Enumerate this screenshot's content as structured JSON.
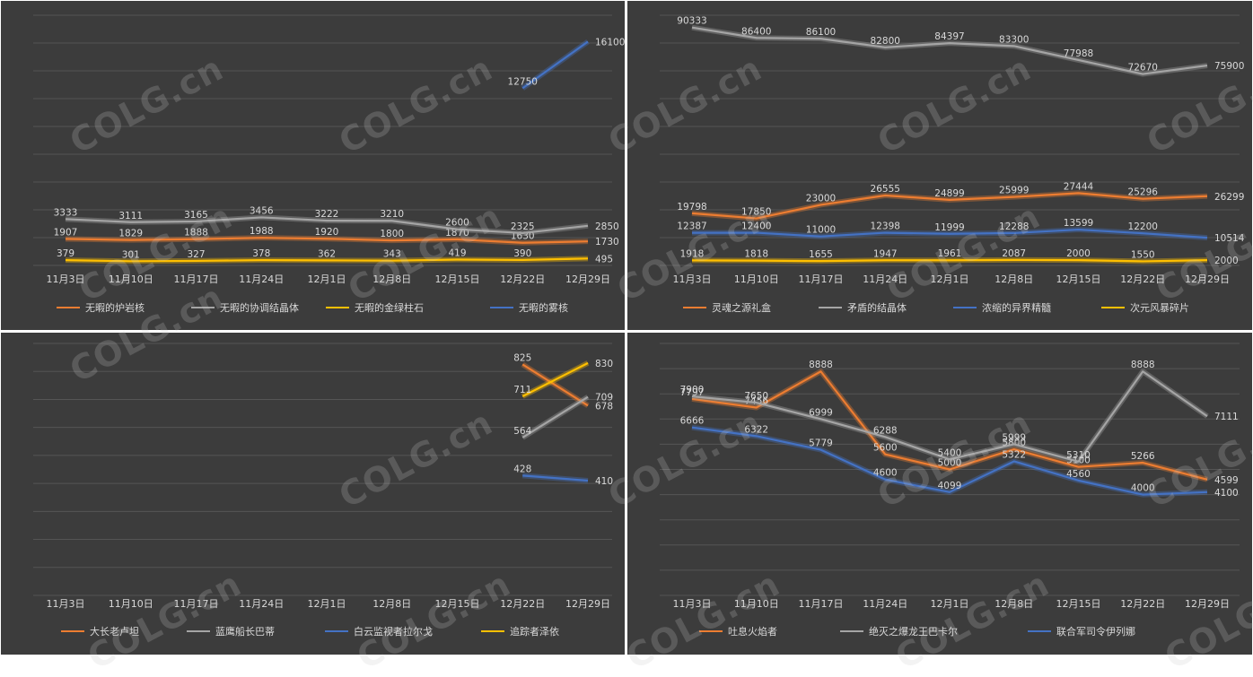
{
  "watermark": "COLG.cn",
  "chart_data": [
    {
      "type": "line",
      "categories": [
        "11月3日",
        "11月10日",
        "11月17日",
        "11月24日",
        "12月1日",
        "12月8日",
        "12月15日",
        "12月22日",
        "12月29日"
      ],
      "ylim": [
        0,
        18000
      ],
      "series": [
        {
          "name": "无暇的炉岩核",
          "color": "#ed7d31",
          "values": [
            1907,
            1829,
            1888,
            1988,
            1920,
            1800,
            1870,
            1630,
            1730
          ]
        },
        {
          "name": "无暇的协调结晶体",
          "color": "#a5a5a5",
          "values": [
            3333,
            3111,
            3165,
            3456,
            3222,
            3210,
            2600,
            2325,
            2850
          ]
        },
        {
          "name": "无暇的金绿柱石",
          "color": "#ffc000",
          "values": [
            379,
            301,
            327,
            378,
            362,
            343,
            419,
            390,
            495
          ]
        },
        {
          "name": "无暇的雾核",
          "color": "#4472c4",
          "values": [
            null,
            null,
            null,
            null,
            null,
            null,
            null,
            12750,
            16100
          ]
        }
      ]
    },
    {
      "type": "line",
      "categories": [
        "11月3日",
        "11月10日",
        "11月17日",
        "11月24日",
        "12月1日",
        "12月8日",
        "12月15日",
        "12月22日",
        "12月29日"
      ],
      "ylim": [
        0,
        95000
      ],
      "series": [
        {
          "name": "灵魂之源礼盒",
          "color": "#ed7d31",
          "values": [
            19798,
            17850,
            23000,
            26555,
            24899,
            25999,
            27444,
            25296,
            26299
          ]
        },
        {
          "name": "矛盾的结晶体",
          "color": "#a5a5a5",
          "values": [
            90333,
            86400,
            86100,
            82800,
            84397,
            83300,
            77988,
            72670,
            75900
          ]
        },
        {
          "name": "浓缩的异界精髓",
          "color": "#4472c4",
          "values": [
            12387,
            12400,
            11000,
            12398,
            11999,
            12288,
            13599,
            12200,
            10514
          ]
        },
        {
          "name": "次元风暴碎片",
          "color": "#ffc000",
          "values": [
            1918,
            1818,
            1655,
            1947,
            1961,
            2087,
            2000,
            1550,
            2000
          ]
        }
      ]
    },
    {
      "type": "line",
      "categories": [
        "11月3日",
        "11月10日",
        "11月17日",
        "11月24日",
        "12月1日",
        "12月8日",
        "12月15日",
        "12月22日",
        "12月29日"
      ],
      "ylim": [
        0,
        900
      ],
      "series": [
        {
          "name": "大长老卢坦",
          "color": "#ed7d31",
          "values": [
            null,
            null,
            null,
            null,
            null,
            null,
            null,
            825,
            678
          ]
        },
        {
          "name": "蓝鹰船长巴蒂",
          "color": "#a5a5a5",
          "values": [
            null,
            null,
            null,
            null,
            null,
            null,
            null,
            564,
            709
          ]
        },
        {
          "name": "白云监视者拉尔戈",
          "color": "#4472c4",
          "values": [
            null,
            null,
            null,
            null,
            null,
            null,
            null,
            428,
            410
          ]
        },
        {
          "name": "追踪者泽依",
          "color": "#ffc000",
          "values": [
            null,
            null,
            null,
            null,
            null,
            null,
            null,
            711,
            830
          ]
        }
      ]
    },
    {
      "type": "line",
      "categories": [
        "11月3日",
        "11月10日",
        "11月17日",
        "11月24日",
        "12月1日",
        "12月8日",
        "12月15日",
        "12月22日",
        "12月29日"
      ],
      "ylim": [
        0,
        10000
      ],
      "series": [
        {
          "name": "吐息火焰者",
          "color": "#ed7d31",
          "values": [
            7797,
            7456,
            8888,
            5600,
            5000,
            5800,
            5100,
            5266,
            4599
          ]
        },
        {
          "name": "绝灭之爆龙王巴卡尔",
          "color": "#a5a5a5",
          "values": [
            7900,
            7650,
            6999,
            6288,
            5400,
            5999,
            5310,
            8888,
            7111
          ]
        },
        {
          "name": "联合军司令伊列娜",
          "color": "#4472c4",
          "values": [
            6666,
            6322,
            5779,
            4600,
            4099,
            5322,
            4560,
            4000,
            4100
          ]
        }
      ]
    }
  ]
}
